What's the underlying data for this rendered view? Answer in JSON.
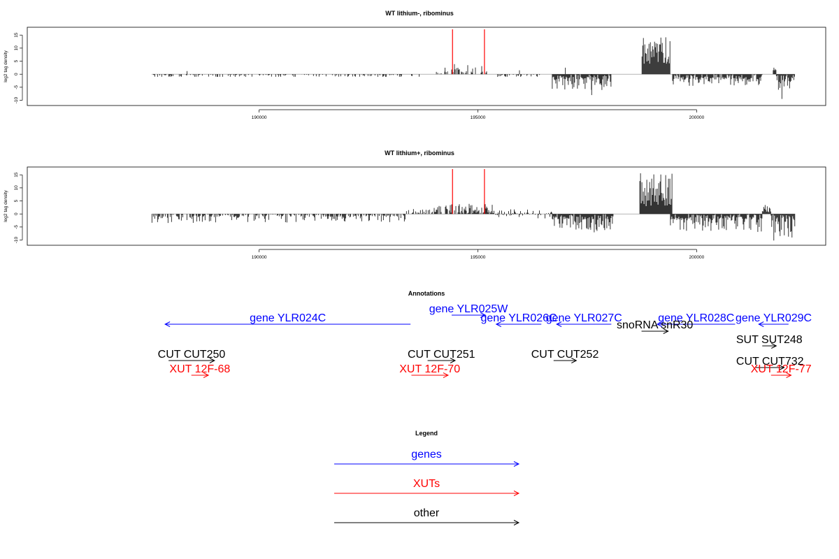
{
  "chart_data": [
    {
      "type": "bar",
      "title": "WT lithium-, ribominus",
      "xlabel": "",
      "ylabel": "log2 tag density",
      "xlim": [
        184700,
        202950
      ],
      "ylim": [
        -12,
        18
      ],
      "xticks": [
        190000,
        195000,
        200000
      ],
      "xtick_labels": [
        "190000",
        "195000",
        "200000"
      ],
      "yticks": [
        15,
        10,
        5,
        0,
        -5,
        -10
      ],
      "ytick_labels": [
        "15",
        "10",
        "5",
        "0",
        "-5",
        "-10"
      ],
      "baseline_range": [
        187550,
        202250
      ],
      "marker_color": "#ff0000",
      "vertical_markers": [
        194420,
        195150
      ],
      "segments": [
        {
          "start": 187550,
          "end": 193400,
          "min": -1,
          "max": 0.3,
          "spikes": [
            {
              "x": 188350,
              "y": 1.2
            }
          ],
          "density": 0.35,
          "sign": "neg"
        },
        {
          "start": 193400,
          "end": 193950,
          "min": -1,
          "max": 0.3,
          "density": 0.1,
          "sign": "neg"
        },
        {
          "start": 194050,
          "end": 194400,
          "min": 0.2,
          "max": 1.2,
          "density": 0.3,
          "sign": "pos",
          "spikes": [
            {
              "x": 194250,
              "y": 2.5
            }
          ]
        },
        {
          "start": 194400,
          "end": 195200,
          "min": 0.5,
          "max": 4,
          "density": 0.6,
          "sign": "pos"
        },
        {
          "start": 195450,
          "end": 196450,
          "min": -1,
          "max": 0.5,
          "density": 0.4,
          "sign": "neg",
          "spikes": [
            {
              "x": 195950,
              "y": 1.5
            }
          ]
        },
        {
          "start": 196700,
          "end": 198050,
          "min": -2,
          "max": 6.5,
          "density": 1.0,
          "sign": "neg",
          "spikes": [
            {
              "x": 197600,
              "y": -8
            },
            {
              "x": 197000,
              "y": 2.5
            }
          ]
        },
        {
          "start": 198750,
          "end": 199400,
          "min": 4,
          "max": 15,
          "density": 1.0,
          "sign": "pos"
        },
        {
          "start": 199450,
          "end": 201500,
          "min": -2,
          "max": 4.5,
          "density": 0.95,
          "sign": "neg"
        },
        {
          "start": 201750,
          "end": 201820,
          "min": 1.5,
          "max": 3.2,
          "density": 1.0,
          "sign": "pos"
        },
        {
          "start": 201820,
          "end": 202250,
          "min": -3,
          "max": 10,
          "density": 1.0,
          "sign": "neg"
        }
      ]
    },
    {
      "type": "bar",
      "title": "WT lithium+, ribominus",
      "xlabel": "",
      "ylabel": "log2 tag density",
      "xlim": [
        184700,
        202950
      ],
      "ylim": [
        -12,
        18
      ],
      "xticks": [
        190000,
        195000,
        200000
      ],
      "xtick_labels": [
        "190000",
        "195000",
        "200000"
      ],
      "yticks": [
        15,
        10,
        5,
        0,
        -5,
        -10
      ],
      "ytick_labels": [
        "15",
        "10",
        "5",
        "0",
        "-5",
        "-10"
      ],
      "baseline_range": [
        187550,
        202250
      ],
      "marker_color": "#ff0000",
      "vertical_markers": [
        194420,
        195150
      ],
      "segments": [
        {
          "start": 187550,
          "end": 193350,
          "min": -1,
          "max": 3.5,
          "density": 0.6,
          "sign": "neg"
        },
        {
          "start": 193350,
          "end": 194000,
          "min": 0.2,
          "max": 2,
          "density": 0.4,
          "sign": "pos"
        },
        {
          "start": 194000,
          "end": 195350,
          "min": 0.3,
          "max": 4,
          "density": 0.7,
          "sign": "pos"
        },
        {
          "start": 195350,
          "end": 196700,
          "min": -0.5,
          "max": 1.8,
          "density": 0.5,
          "sign": "mixed"
        },
        {
          "start": 196700,
          "end": 198100,
          "min": -2,
          "max": 8,
          "density": 1.0,
          "sign": "neg"
        },
        {
          "start": 198700,
          "end": 199450,
          "min": 3,
          "max": 16,
          "density": 1.0,
          "sign": "pos"
        },
        {
          "start": 199400,
          "end": 201500,
          "min": -2,
          "max": 7,
          "density": 1.0,
          "sign": "neg"
        },
        {
          "start": 201500,
          "end": 201700,
          "min": 0.5,
          "max": 4,
          "density": 1.0,
          "sign": "pos"
        },
        {
          "start": 201700,
          "end": 202250,
          "min": -3,
          "max": 10.5,
          "density": 1.0,
          "sign": "neg"
        }
      ]
    }
  ],
  "annotations": {
    "title": "Annotations",
    "colors": {
      "genes": "#0000ff",
      "xuts": "#ff0000",
      "other": "#000000"
    },
    "features": [
      {
        "name": "gene YLR024C",
        "category": "genes",
        "dir": "left",
        "start": 187850,
        "end": 193460,
        "row": 0
      },
      {
        "name": "gene YLR025W",
        "category": "genes",
        "dir": "right",
        "start": 194400,
        "end": 195170,
        "row": -1
      },
      {
        "name": "gene YLR026C",
        "category": "genes",
        "dir": "left",
        "start": 195420,
        "end": 196450,
        "row": 0
      },
      {
        "name": "gene YLR027C",
        "category": "genes",
        "dir": "left",
        "start": 196800,
        "end": 198050,
        "row": 0
      },
      {
        "name": "gene YLR028C",
        "category": "genes",
        "dir": "left",
        "start": 199100,
        "end": 200880,
        "row": 0
      },
      {
        "name": "gene YLR029C",
        "category": "genes",
        "dir": "left",
        "start": 201420,
        "end": 202100,
        "row": 0
      },
      {
        "name": "snoRNA snR30",
        "category": "other",
        "dir": "right",
        "start": 198740,
        "end": 199350,
        "row": 1
      },
      {
        "name": "SUT SUT248",
        "category": "other",
        "dir": "right",
        "start": 201500,
        "end": 201820,
        "row": 2
      },
      {
        "name": "CUT CUT250",
        "category": "other",
        "dir": "right",
        "start": 187930,
        "end": 188980,
        "row": 3
      },
      {
        "name": "CUT CUT251",
        "category": "other",
        "dir": "right",
        "start": 193850,
        "end": 194480,
        "row": 3
      },
      {
        "name": "CUT CUT252",
        "category": "other",
        "dir": "right",
        "start": 196730,
        "end": 197250,
        "row": 3
      },
      {
        "name": "CUT CUT732",
        "category": "other",
        "dir": "right",
        "start": 201350,
        "end": 202000,
        "row": 3.5
      },
      {
        "name": "XUT 12F-68",
        "category": "xuts",
        "dir": "right",
        "start": 188450,
        "end": 188840,
        "row": 4
      },
      {
        "name": "XUT 12F-70",
        "category": "xuts",
        "dir": "right",
        "start": 193480,
        "end": 194320,
        "row": 4
      },
      {
        "name": "XUT 12F-77",
        "category": "xuts",
        "dir": "right",
        "start": 201700,
        "end": 202160,
        "row": 4
      }
    ]
  },
  "legend": {
    "title": "Legend",
    "items": [
      {
        "label": "genes",
        "color": "#0000ff"
      },
      {
        "label": "XUTs",
        "color": "#ff0000"
      },
      {
        "label": "other",
        "color": "#000000"
      }
    ]
  }
}
